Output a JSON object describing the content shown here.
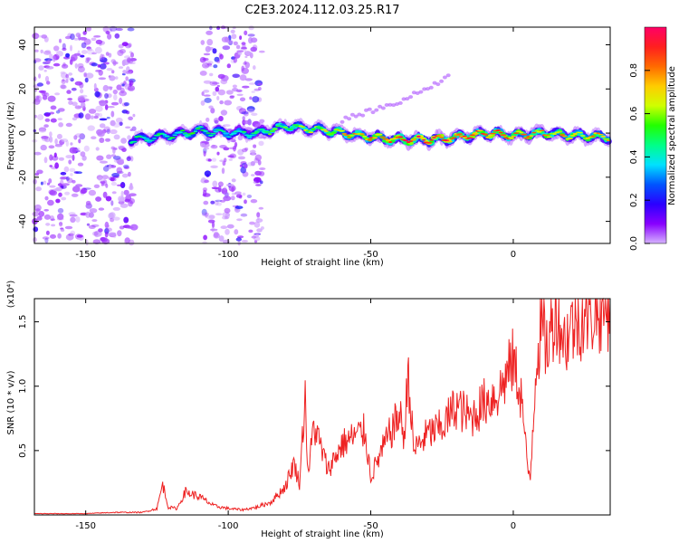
{
  "title": "C2E3.2024.112.03.25.R17",
  "chart_data": [
    {
      "type": "heatmap",
      "xlabel": "Height of straight line (km)",
      "ylabel": "Frequency (Hz)",
      "xlim": [
        -168,
        34
      ],
      "ylim": [
        -50,
        48
      ],
      "xticks": [
        -150,
        -100,
        -50,
        0
      ],
      "yticks": [
        -40,
        -20,
        0,
        20,
        40
      ],
      "colorbar": {
        "label": "Normalized spectral amplitude",
        "range": [
          0,
          1
        ],
        "ticks": [
          "0.0",
          "0.2",
          "0.4",
          "0.6",
          "0.8"
        ],
        "colors": [
          "#d6b3ff",
          "#8800ff",
          "#2b00ff",
          "#0055ff",
          "#00e1ff",
          "#00ff88",
          "#22ff00",
          "#cfff00",
          "#ffcc00",
          "#ff6a00",
          "#ff1f1f",
          "#ff0066"
        ]
      },
      "ridge": {
        "x_km": [
          -134,
          -120,
          -110,
          -100,
          -90,
          -80,
          -70,
          -60,
          -50,
          -40,
          -30,
          -20,
          -10,
          0,
          10,
          20,
          34
        ],
        "freq_hz": [
          -3,
          -1,
          1,
          0,
          0,
          3,
          2,
          0,
          -2,
          -3,
          -3,
          -2,
          0,
          -1,
          0,
          -1,
          -2
        ],
        "peak_amplitude": [
          0.45,
          0.45,
          0.5,
          0.4,
          0.5,
          0.55,
          0.6,
          0.7,
          0.8,
          0.85,
          0.9,
          0.9,
          0.85,
          0.8,
          0.75,
          0.75,
          0.7
        ]
      },
      "harmonic": {
        "x_km": [
          -60,
          -40,
          -22
        ],
        "freq_hz": [
          6,
          14,
          26
        ]
      },
      "noise_regions_km": [
        [
          -168,
          -133
        ],
        [
          -109,
          -88
        ]
      ]
    },
    {
      "type": "line",
      "xlabel": "Height of straight line (km)",
      "ylabel": "SNR (10 * v/v)",
      "y_multiplier": "(x10⁴)",
      "xlim": [
        -168,
        34
      ],
      "ylim": [
        0,
        1.68
      ],
      "xticks": [
        -150,
        -100,
        -50,
        0
      ],
      "yticks": [
        0.5,
        1.0,
        1.5
      ],
      "color": "#ee2222",
      "series": [
        {
          "x": [
            -168,
            -150,
            -140,
            -130,
            -125,
            -123,
            -121,
            -118,
            -115,
            -110,
            -105,
            -100,
            -95,
            -90,
            -85,
            -80,
            -77,
            -75,
            -73,
            -72,
            -70,
            -65,
            -60,
            -55,
            -52,
            -50,
            -45,
            -40,
            -38,
            -37,
            -35,
            -30,
            -25,
            -20,
            -15,
            -10,
            -5,
            -2,
            0,
            3,
            5,
            6,
            8,
            10,
            12,
            15,
            18,
            20,
            22,
            25,
            30,
            34
          ],
          "y": [
            0.01,
            0.01,
            0.02,
            0.02,
            0.05,
            0.24,
            0.06,
            0.05,
            0.18,
            0.14,
            0.07,
            0.05,
            0.04,
            0.06,
            0.1,
            0.22,
            0.4,
            0.25,
            0.94,
            0.3,
            0.7,
            0.35,
            0.55,
            0.62,
            0.65,
            0.3,
            0.55,
            0.78,
            0.6,
            1.18,
            0.5,
            0.63,
            0.68,
            0.85,
            0.75,
            0.88,
            0.95,
            1.1,
            1.2,
            0.9,
            0.35,
            0.3,
            1.2,
            1.45,
            1.3,
            1.62,
            1.35,
            1.45,
            1.5,
            1.55,
            1.6,
            1.64
          ]
        }
      ]
    }
  ]
}
